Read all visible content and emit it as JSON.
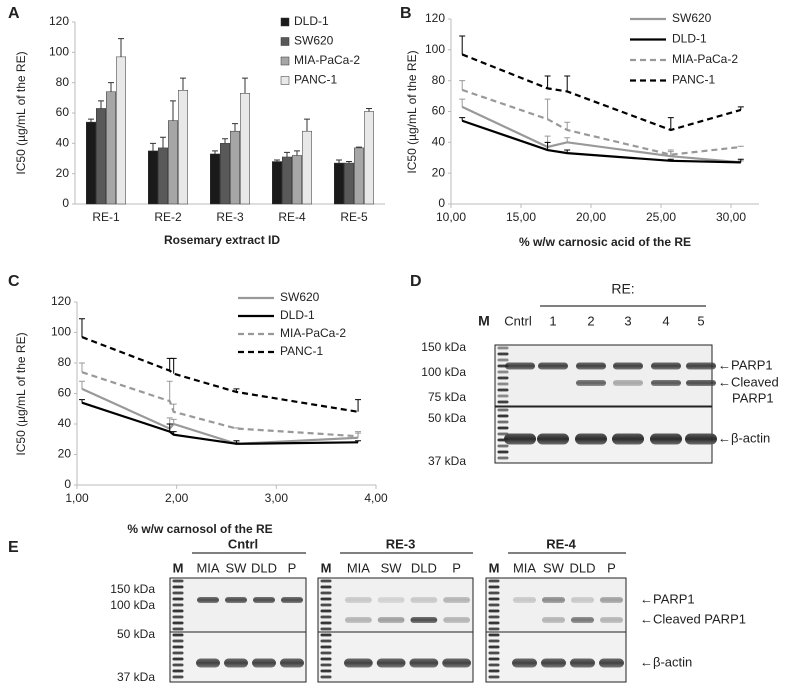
{
  "chart_data": [
    {
      "type": "bar",
      "panel": "A",
      "y_label": "IC50 (µg/mL of the RE)",
      "x_label": "Rosemary extract ID",
      "categories": [
        "RE-1",
        "RE-2",
        "RE-3",
        "RE-4",
        "RE-5"
      ],
      "ylim": [
        0,
        120
      ],
      "yticks": [
        0,
        20,
        40,
        60,
        80,
        100,
        120
      ],
      "legend": "top-right",
      "series": [
        {
          "name": "DLD-1",
          "color": "#1a1a1a",
          "values": [
            54,
            35,
            33,
            28,
            27
          ],
          "errors": [
            2,
            5,
            2,
            1,
            2
          ]
        },
        {
          "name": "SW620",
          "color": "#595959",
          "values": [
            63,
            37,
            40,
            31,
            27
          ],
          "errors": [
            5,
            7,
            3,
            3,
            1
          ]
        },
        {
          "name": "MIA-PaCa-2",
          "color": "#a6a6a6",
          "values": [
            74,
            55,
            48,
            32,
            37
          ],
          "errors": [
            6,
            13,
            5,
            3,
            0.5
          ]
        },
        {
          "name": "PANC-1",
          "color": "#e8e8e8",
          "values": [
            97,
            75,
            73,
            48,
            61
          ],
          "errors": [
            12,
            8,
            10,
            8,
            2
          ]
        }
      ]
    },
    {
      "type": "line",
      "panel": "B",
      "y_label": "IC50 (µg/mL of the RE)",
      "x_label": "% w/w carnosic acid of the RE",
      "x": [
        10.8,
        16.9,
        18.3,
        25.7,
        30.7
      ],
      "xlim": [
        10,
        32
      ],
      "xticks": [
        {
          "value": 10,
          "label": "10,00"
        },
        {
          "value": 15,
          "label": "15,00"
        },
        {
          "value": 20,
          "label": "20,00"
        },
        {
          "value": 25,
          "label": "25,00"
        },
        {
          "value": 30,
          "label": "30,00"
        }
      ],
      "ylim": [
        0,
        120
      ],
      "yticks": [
        0,
        20,
        40,
        60,
        80,
        100,
        120
      ],
      "legend": "top-right",
      "series": [
        {
          "name": "SW620",
          "color": "#999999",
          "line_style": "solid",
          "values": [
            63,
            37,
            40,
            31,
            27
          ],
          "errors": [
            5,
            7,
            3,
            3,
            1
          ]
        },
        {
          "name": "DLD-1",
          "color": "#000000",
          "line_style": "solid",
          "values": [
            54,
            35,
            33,
            28,
            27
          ],
          "errors": [
            2,
            5,
            2,
            1,
            2
          ]
        },
        {
          "name": "MIA-PaCa-2",
          "color": "#999999",
          "line_style": "dashed",
          "values": [
            74,
            55,
            48,
            32,
            37
          ],
          "errors": [
            6,
            13,
            5,
            3,
            0.5
          ]
        },
        {
          "name": "PANC-1",
          "color": "#000000",
          "line_style": "dashed",
          "values": [
            97,
            75,
            73,
            48,
            61
          ],
          "errors": [
            12,
            8,
            10,
            8,
            2
          ]
        }
      ]
    },
    {
      "type": "line",
      "panel": "C",
      "y_label": "IC50 (µg/mL of the RE)",
      "x_label": "% w/w carnosol of the RE",
      "x": [
        1.05,
        1.93,
        1.97,
        2.6,
        3.82
      ],
      "xlim": [
        1,
        4
      ],
      "xticks": [
        {
          "value": 1,
          "label": "1,00"
        },
        {
          "value": 2,
          "label": "2,00"
        },
        {
          "value": 3,
          "label": "3,00"
        },
        {
          "value": 4,
          "label": "4,00"
        }
      ],
      "ylim": [
        0,
        120
      ],
      "yticks": [
        0,
        20,
        40,
        60,
        80,
        100,
        120
      ],
      "legend": "top-right",
      "series": [
        {
          "name": "SW620",
          "color": "#999999",
          "line_style": "solid",
          "values": [
            63,
            37,
            40,
            27,
            31
          ],
          "errors": [
            5,
            7,
            3,
            1,
            3
          ]
        },
        {
          "name": "DLD-1",
          "color": "#000000",
          "line_style": "solid",
          "values": [
            54,
            35,
            33,
            27,
            28
          ],
          "errors": [
            2,
            5,
            2,
            2,
            1
          ]
        },
        {
          "name": "MIA-PaCa-2",
          "color": "#999999",
          "line_style": "dashed",
          "values": [
            74,
            55,
            48,
            37,
            32
          ],
          "errors": [
            6,
            13,
            5,
            0.5,
            3
          ]
        },
        {
          "name": "PANC-1",
          "color": "#000000",
          "line_style": "dashed",
          "values": [
            97,
            75,
            73,
            61,
            48
          ],
          "errors": [
            12,
            8,
            10,
            2,
            8
          ]
        }
      ]
    }
  ],
  "blots": [
    {
      "panel": "D",
      "group_label": "RE:",
      "lanes": [
        "M",
        "Cntrl",
        "1",
        "2",
        "3",
        "4",
        "5"
      ],
      "size_labels": [
        "150 kDa",
        "100 kDa",
        "75 kDa",
        "50 kDa",
        "37 kDa"
      ],
      "band_labels": [
        "←PARP1",
        "←Cleaved",
        "PARP1",
        "←β-actin"
      ]
    },
    {
      "panel": "E",
      "groups": [
        {
          "label": "Cntrl",
          "lanes": [
            "M",
            "MIA",
            "SW",
            "DLD",
            "P"
          ]
        },
        {
          "label": "RE-3",
          "lanes": [
            "M",
            "MIA",
            "SW",
            "DLD",
            "P"
          ]
        },
        {
          "label": "RE-4",
          "lanes": [
            "M",
            "MIA",
            "SW",
            "DLD",
            "P"
          ]
        }
      ],
      "size_labels": [
        "150 kDa",
        "100 kDa",
        "50 kDa",
        "37 kDa"
      ],
      "band_labels": [
        "←PARP1",
        "←Cleaved PARP1",
        "←β-actin"
      ]
    }
  ]
}
